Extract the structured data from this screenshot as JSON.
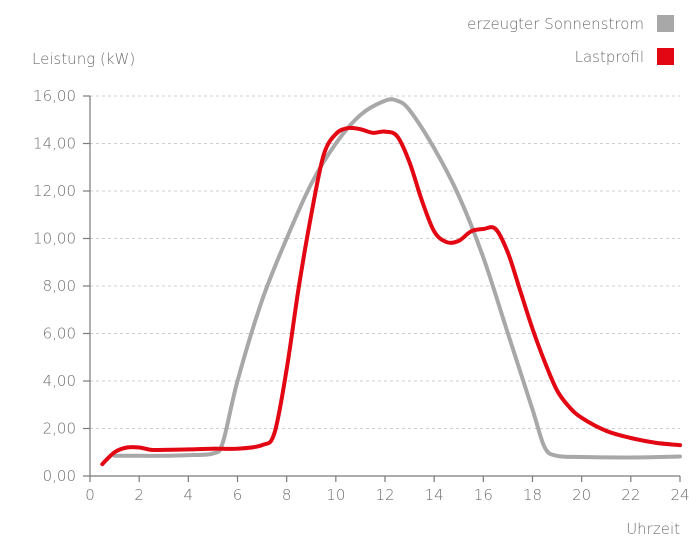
{
  "chart_data": {
    "type": "line",
    "title": "",
    "ylabel": "Leistung (kW)",
    "xlabel": "Uhrzeit",
    "xlim": [
      0,
      24
    ],
    "ylim": [
      0,
      16
    ],
    "x_ticks": [
      "0",
      "2",
      "4",
      "6",
      "8",
      "10",
      "12",
      "14",
      "16",
      "18",
      "20",
      "22",
      "24"
    ],
    "y_ticks": [
      "0,00",
      "2,00",
      "4,00",
      "6,00",
      "8,00",
      "10,00",
      "12,00",
      "14,00",
      "16,00"
    ],
    "grid": "horizontal dashed",
    "legend_position": "top-right",
    "series": [
      {
        "name": "erzeugter Sonnenstrom",
        "color": "#a8a8a8",
        "points": [
          [
            1,
            0.85
          ],
          [
            2,
            0.85
          ],
          [
            3,
            0.85
          ],
          [
            4,
            0.88
          ],
          [
            5,
            0.95
          ],
          [
            5.4,
            1.4
          ],
          [
            6,
            4.0
          ],
          [
            7,
            7.4
          ],
          [
            8,
            10.0
          ],
          [
            9,
            12.3
          ],
          [
            10,
            14.0
          ],
          [
            11,
            15.2
          ],
          [
            12,
            15.8
          ],
          [
            12.5,
            15.8
          ],
          [
            13,
            15.4
          ],
          [
            14,
            13.8
          ],
          [
            15,
            11.8
          ],
          [
            16,
            9.2
          ],
          [
            17,
            6.0
          ],
          [
            18,
            2.8
          ],
          [
            18.5,
            1.2
          ],
          [
            19,
            0.85
          ],
          [
            20,
            0.8
          ],
          [
            22,
            0.78
          ],
          [
            24,
            0.82
          ]
        ]
      },
      {
        "name": "Lastprofil",
        "color": "#e30613",
        "points": [
          [
            0.5,
            0.5
          ],
          [
            1,
            1.0
          ],
          [
            1.5,
            1.2
          ],
          [
            2,
            1.2
          ],
          [
            2.5,
            1.1
          ],
          [
            3,
            1.1
          ],
          [
            4,
            1.12
          ],
          [
            5,
            1.15
          ],
          [
            6,
            1.15
          ],
          [
            7,
            1.3
          ],
          [
            7.5,
            1.8
          ],
          [
            8,
            4.5
          ],
          [
            8.5,
            8.0
          ],
          [
            9,
            11.0
          ],
          [
            9.5,
            13.5
          ],
          [
            10,
            14.4
          ],
          [
            10.5,
            14.65
          ],
          [
            11,
            14.6
          ],
          [
            11.5,
            14.45
          ],
          [
            12,
            14.5
          ],
          [
            12.5,
            14.3
          ],
          [
            13,
            13.2
          ],
          [
            13.5,
            11.6
          ],
          [
            14,
            10.3
          ],
          [
            14.5,
            9.85
          ],
          [
            15,
            9.9
          ],
          [
            15.5,
            10.3
          ],
          [
            16,
            10.4
          ],
          [
            16.5,
            10.4
          ],
          [
            17,
            9.4
          ],
          [
            17.5,
            7.8
          ],
          [
            18,
            6.2
          ],
          [
            18.5,
            4.8
          ],
          [
            19,
            3.6
          ],
          [
            19.5,
            2.9
          ],
          [
            20,
            2.45
          ],
          [
            21,
            1.9
          ],
          [
            22,
            1.6
          ],
          [
            23,
            1.4
          ],
          [
            24,
            1.3
          ]
        ]
      }
    ]
  }
}
